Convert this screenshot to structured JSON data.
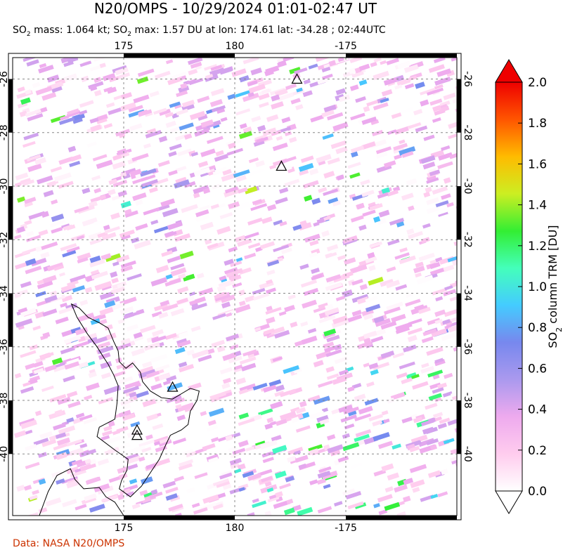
{
  "title": "N20/OMPS - 10/29/2024 01:01-02:47 UT",
  "subtitle": {
    "mass_label": "SO",
    "mass_sub": "2",
    "mass_text": " mass: 1.064 kt; SO",
    "max_sub": "2",
    "max_text": " max: 1.57 DU at lon: 174.61 lat: -34.28 ; 02:44UTC"
  },
  "credit": "Data: NASA N20/OMPS",
  "colorbar": {
    "label_prefix": "SO",
    "label_sub": "2",
    "label_suffix": " column TRM [DU]",
    "ticks": [
      "0.0",
      "0.2",
      "0.4",
      "0.6",
      "0.8",
      "1.0",
      "1.2",
      "1.4",
      "1.6",
      "1.8",
      "2.0"
    ],
    "colors": [
      "#ffffff",
      "#ffccee",
      "#eeaaee",
      "#aa99ee",
      "#7788ee",
      "#44ccff",
      "#44ffbb",
      "#33ee33",
      "#ccee22",
      "#ffbb00",
      "#ff5500",
      "#ee0000"
    ]
  },
  "chart_data": {
    "type": "heatmap",
    "title": "N20/OMPS - 10/29/2024 01:01-02:47 UT",
    "xlabel": "",
    "ylabel": "",
    "x_ticks_top": [
      "175",
      "180",
      "-175"
    ],
    "x_ticks_bottom": [
      "175",
      "180",
      "-175"
    ],
    "y_ticks_left": [
      "-26",
      "-28",
      "-30",
      "-32",
      "-34",
      "-36",
      "-38",
      "-40"
    ],
    "y_ticks_right": [
      "-26",
      "-28",
      "-30",
      "-32",
      "-34",
      "-36",
      "-38",
      "-40"
    ],
    "xlim": [
      170,
      190
    ],
    "ylim": [
      -42.3,
      -25.2
    ],
    "grid": true,
    "colorbar_range": [
      0.0,
      2.0
    ],
    "so2_mass_kt": 1.064,
    "so2_max_DU": 1.57,
    "so2_max_lon": 174.61,
    "so2_max_lat": -34.28,
    "so2_max_time": "02:44UTC",
    "volcanoes": [
      {
        "lon": 182.8,
        "lat": -26.0
      },
      {
        "lon": 182.1,
        "lat": -29.25
      },
      {
        "lon": 177.2,
        "lat": -37.5
      },
      {
        "lon": 175.6,
        "lat": -39.1
      },
      {
        "lon": 175.6,
        "lat": -39.3
      }
    ]
  }
}
